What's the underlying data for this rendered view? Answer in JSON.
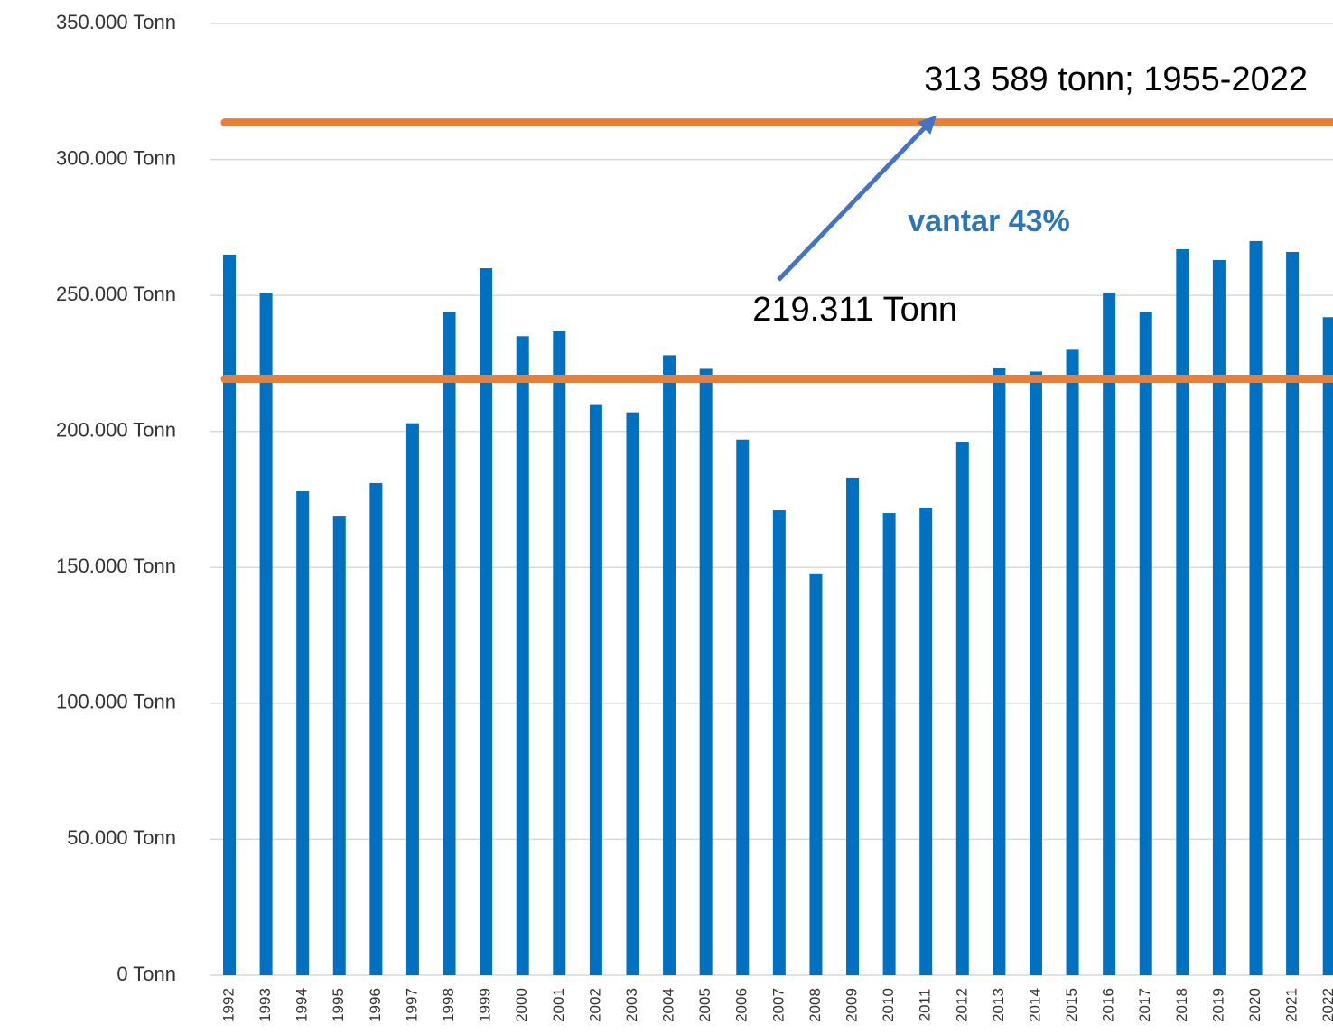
{
  "chart_data": {
    "type": "bar",
    "categories": [
      "1992",
      "1993",
      "1994",
      "1995",
      "1996",
      "1997",
      "1998",
      "1999",
      "2000",
      "2001",
      "2002",
      "2003",
      "2004",
      "2005",
      "2006",
      "2007",
      "2008",
      "2009",
      "2010",
      "2011",
      "2012",
      "2013",
      "2014",
      "2015",
      "2016",
      "2017",
      "2018",
      "2019",
      "2020",
      "2021",
      "2022"
    ],
    "values": [
      265000,
      251000,
      178000,
      169000,
      181000,
      203000,
      244000,
      260000,
      235000,
      237000,
      210000,
      207000,
      228000,
      223000,
      197000,
      171000,
      147500,
      183000,
      170000,
      172000,
      196000,
      223500,
      222000,
      230000,
      251000,
      244000,
      267000,
      263000,
      270000,
      266000,
      242000
    ],
    "color": "#0070c0",
    "ylim": [
      0,
      350000
    ],
    "yticks": [
      {
        "value": 0,
        "label": "0 Tonn"
      },
      {
        "value": 50000,
        "label": "50.000 Tonn"
      },
      {
        "value": 100000,
        "label": "100.000 Tonn"
      },
      {
        "value": 150000,
        "label": "150.000 Tonn"
      },
      {
        "value": 200000,
        "label": "200.000 Tonn"
      },
      {
        "value": 250000,
        "label": "250.000 Tonn"
      },
      {
        "value": 300000,
        "label": "300.000 Tonn"
      },
      {
        "value": 350000,
        "label": "350.000 Tonn"
      }
    ],
    "grid": true,
    "reference_lines": [
      {
        "value": 313589,
        "label": "313 589 tonn; 1955-2022",
        "color": "#ed7d31"
      },
      {
        "value": 219311,
        "label": "219.311 Tonn",
        "color": "#ed7d31"
      }
    ],
    "annotation": "vantar 43%"
  }
}
